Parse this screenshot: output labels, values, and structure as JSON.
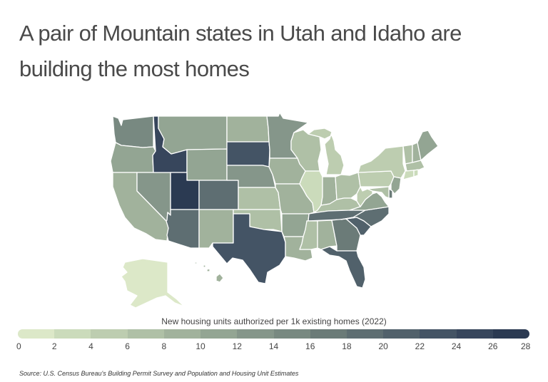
{
  "title": "A pair of Mountain states in Utah and Idaho are building the most homes",
  "legend": {
    "title": "New housing units authorized per 1k existing homes (2022)",
    "ticks": [
      "0",
      "2",
      "4",
      "6",
      "8",
      "10",
      "12",
      "14",
      "16",
      "18",
      "20",
      "22",
      "24",
      "26",
      "28"
    ],
    "colors": [
      "#dce8c8",
      "#cbdbbb",
      "#bdcdb0",
      "#afc0a6",
      "#a1b29c",
      "#93a593",
      "#85968a",
      "#788981",
      "#6b7b78",
      "#5e6e72",
      "#51616b",
      "#445465",
      "#37465c",
      "#2b3a52"
    ]
  },
  "source": "Source: U.S. Census Bureau's Building Permit Survey and Population and Housing Unit Estimates",
  "chart_data": {
    "type": "choropleth",
    "title": "A pair of Mountain states in Utah and Idaho are building the most homes",
    "legend_title": "New housing units authorized per 1k existing homes (2022)",
    "scale": {
      "min": 0,
      "max": 28,
      "step": 2
    },
    "states": [
      {
        "state": "Utah",
        "bin": "26-28"
      },
      {
        "state": "Idaho",
        "bin": "24-26"
      },
      {
        "state": "South Dakota",
        "bin": "22-24"
      },
      {
        "state": "Texas",
        "bin": "22-24"
      },
      {
        "state": "Florida",
        "bin": "20-22"
      },
      {
        "state": "North Carolina",
        "bin": "18-20"
      },
      {
        "state": "South Carolina",
        "bin": "20-22"
      },
      {
        "state": "Tennessee",
        "bin": "18-20"
      },
      {
        "state": "Arizona",
        "bin": "18-20"
      },
      {
        "state": "Colorado",
        "bin": "18-20"
      },
      {
        "state": "Georgia",
        "bin": "16-18"
      },
      {
        "state": "Delaware",
        "bin": "16-18"
      },
      {
        "state": "Washington",
        "bin": "14-16"
      },
      {
        "state": "Nevada",
        "bin": "14-16"
      },
      {
        "state": "Nebraska",
        "bin": "12-14"
      },
      {
        "state": "Minnesota",
        "bin": "12-14"
      },
      {
        "state": "Montana",
        "bin": "10-12"
      },
      {
        "state": "Wyoming",
        "bin": "10-12"
      },
      {
        "state": "Oregon",
        "bin": "10-12"
      },
      {
        "state": "Virginia",
        "bin": "10-12"
      },
      {
        "state": "Maine",
        "bin": "10-12"
      },
      {
        "state": "Arkansas",
        "bin": "10-12"
      },
      {
        "state": "Iowa",
        "bin": "8-10"
      },
      {
        "state": "Indiana",
        "bin": "8-10"
      },
      {
        "state": "New Mexico",
        "bin": "8-10"
      },
      {
        "state": "California",
        "bin": "8-10"
      },
      {
        "state": "North Dakota",
        "bin": "8-10"
      },
      {
        "state": "New Hampshire",
        "bin": "8-10"
      },
      {
        "state": "New Jersey",
        "bin": "10-12"
      },
      {
        "state": "Alabama",
        "bin": "8-10"
      },
      {
        "state": "Missouri",
        "bin": "8-10"
      },
      {
        "state": "Louisiana",
        "bin": "8-10"
      },
      {
        "state": "Hawaii",
        "bin": "8-10"
      },
      {
        "state": "Kansas",
        "bin": "6-8"
      },
      {
        "state": "Oklahoma",
        "bin": "6-8"
      },
      {
        "state": "Kentucky",
        "bin": "6-8"
      },
      {
        "state": "Mississippi",
        "bin": "6-8"
      },
      {
        "state": "Wisconsin",
        "bin": "6-8"
      },
      {
        "state": "Ohio",
        "bin": "6-8"
      },
      {
        "state": "Vermont",
        "bin": "6-8"
      },
      {
        "state": "Maryland",
        "bin": "6-8"
      },
      {
        "state": "Massachusetts",
        "bin": "6-8"
      },
      {
        "state": "Michigan",
        "bin": "4-6"
      },
      {
        "state": "Pennsylvania",
        "bin": "4-6"
      },
      {
        "state": "New York",
        "bin": "4-6"
      },
      {
        "state": "West Virginia",
        "bin": "4-6"
      },
      {
        "state": "Connecticut",
        "bin": "2-4"
      },
      {
        "state": "Rhode Island",
        "bin": "2-4"
      },
      {
        "state": "Illinois",
        "bin": "2-4"
      },
      {
        "state": "Alaska",
        "bin": "0-2"
      }
    ]
  }
}
